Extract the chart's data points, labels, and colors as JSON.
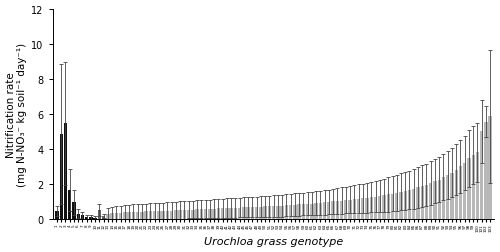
{
  "title": "",
  "xlabel": "Urochloa grass genotype",
  "ylabel": "Nitrification rate\n(mg N-NO₃⁻ kg soil⁻¹ day⁻¹)",
  "ylim": [
    0,
    12
  ],
  "yticks": [
    0,
    2,
    4,
    6,
    8,
    10,
    12
  ],
  "background_color": "#ffffff",
  "bar_width": 0.8,
  "black_bars": [
    0,
    1,
    2,
    3,
    4,
    5,
    6,
    7,
    8,
    9
  ],
  "grey_mid_bars": [
    10,
    11
  ],
  "values": [
    0.45,
    4.85,
    5.45,
    1.65,
    0.95,
    0.3,
    0.2,
    0.12,
    0.1,
    0.08,
    0.5,
    0.15,
    0.3,
    0.32,
    0.35,
    0.35,
    0.37,
    0.38,
    0.4,
    0.4,
    0.42,
    0.43,
    0.44,
    0.45,
    0.45,
    0.46,
    0.47,
    0.48,
    0.5,
    0.5,
    0.52,
    0.53,
    0.54,
    0.55,
    0.55,
    0.56,
    0.57,
    0.58,
    0.6,
    0.6,
    0.62,
    0.63,
    0.64,
    0.65,
    0.66,
    0.67,
    0.68,
    0.7,
    0.7,
    0.72,
    0.73,
    0.74,
    0.75,
    0.76,
    0.78,
    0.8,
    0.82,
    0.83,
    0.85,
    0.87,
    0.88,
    0.9,
    0.92,
    0.95,
    0.97,
    1.0,
    1.03,
    1.05,
    1.08,
    1.1,
    1.13,
    1.15,
    1.18,
    1.22,
    1.25,
    1.28,
    1.32,
    1.35,
    1.4,
    1.45,
    1.5,
    1.55,
    1.6,
    1.65,
    1.72,
    1.8,
    1.88,
    1.95,
    2.05,
    2.15,
    2.25,
    2.38,
    2.5,
    2.65,
    2.8,
    3.0,
    3.2,
    3.45,
    3.65,
    3.8,
    5.0,
    5.55,
    5.85
  ],
  "errors": [
    0.3,
    4.0,
    3.5,
    1.2,
    0.7,
    0.25,
    0.18,
    0.12,
    0.1,
    0.08,
    0.35,
    0.12,
    0.35,
    0.38,
    0.4,
    0.4,
    0.42,
    0.42,
    0.43,
    0.45,
    0.45,
    0.45,
    0.46,
    0.46,
    0.47,
    0.47,
    0.47,
    0.48,
    0.48,
    0.5,
    0.5,
    0.5,
    0.5,
    0.52,
    0.52,
    0.52,
    0.53,
    0.54,
    0.54,
    0.55,
    0.55,
    0.55,
    0.56,
    0.56,
    0.57,
    0.57,
    0.58,
    0.58,
    0.6,
    0.6,
    0.6,
    0.62,
    0.62,
    0.62,
    0.63,
    0.63,
    0.65,
    0.65,
    0.65,
    0.66,
    0.67,
    0.68,
    0.68,
    0.7,
    0.7,
    0.72,
    0.73,
    0.75,
    0.76,
    0.78,
    0.8,
    0.82,
    0.84,
    0.86,
    0.88,
    0.9,
    0.93,
    0.95,
    0.98,
    1.0,
    1.03,
    1.05,
    1.08,
    1.1,
    1.13,
    1.15,
    1.18,
    1.2,
    1.23,
    1.25,
    1.28,
    1.3,
    1.35,
    1.4,
    1.45,
    1.5,
    1.55,
    1.6,
    1.65,
    1.7,
    1.8,
    0.9,
    3.8
  ],
  "bar_color_dark": "#111111",
  "bar_color_mid": "#666666",
  "bar_color_light": "#b8b8b8",
  "error_color": "#444444",
  "xlabel_fontsize": 8,
  "ylabel_fontsize": 7.5,
  "tick_fontsize": 7
}
